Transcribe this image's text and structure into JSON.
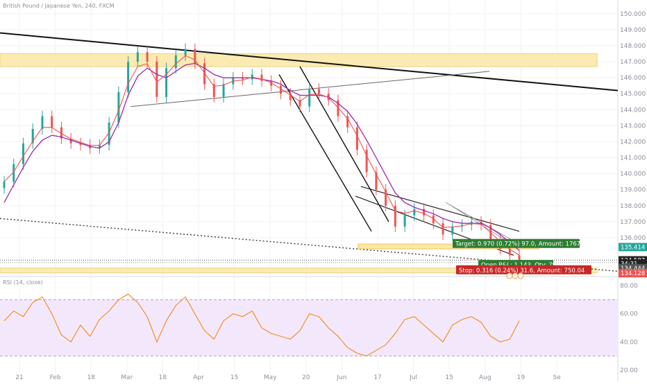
{
  "header": {
    "symbol": "British Pound / Japanese Yen, 240, FXCM",
    "rsi_title": "RSI (14, close)"
  },
  "chart_data": [
    {
      "type": "candlestick",
      "title": "British Pound / Japanese Yen, 240, FXCM",
      "x_ticks": [
        "21",
        "Feb",
        "18",
        "Mar",
        "18",
        "Apr",
        "15",
        "May",
        "20",
        "Jun",
        "17",
        "Jul",
        "15",
        "Aug",
        "19",
        "Se"
      ],
      "y_ticks": [
        "150.000",
        "149.000",
        "148.000",
        "147.000",
        "146.000",
        "145.000",
        "144.000",
        "143.000",
        "142.000",
        "141.000",
        "140.000",
        "139.000",
        "138.000",
        "137.000",
        "136.000"
      ],
      "ylim": [
        133.7,
        150.6
      ],
      "price_close": [
        139.5,
        140.6,
        141.9,
        142.8,
        143.6,
        142.9,
        142.2,
        141.9,
        141.8,
        141.6,
        141.8,
        143.2,
        145.1,
        147.0,
        147.6,
        147.0,
        144.8,
        146.6,
        147.4,
        147.8,
        146.9,
        145.6,
        144.8,
        145.6,
        146.0,
        145.9,
        146.2,
        145.8,
        145.5,
        145.0,
        144.6,
        144.2,
        145.3,
        145.0,
        144.6,
        143.6,
        142.9,
        141.5,
        140.1,
        139.0,
        138.0,
        136.7,
        137.4,
        137.8,
        137.4,
        136.9,
        136.2,
        136.7,
        136.8,
        137.0,
        136.8,
        135.9,
        135.3,
        134.9,
        134.6
      ],
      "ma_line": [
        138.2,
        139.3,
        140.4,
        141.4,
        142.1,
        142.4,
        142.3,
        142.1,
        141.9,
        141.7,
        141.6,
        142.0,
        143.2,
        144.9,
        146.1,
        146.6,
        146.2,
        146.0,
        146.4,
        146.8,
        146.9,
        146.6,
        146.2,
        146.0,
        146.0,
        146.0,
        146.0,
        145.9,
        145.8,
        145.6,
        145.2,
        144.9,
        144.9,
        144.9,
        144.8,
        144.4,
        143.9,
        143.1,
        142.1,
        141.0,
        139.9,
        138.8,
        138.2,
        137.9,
        137.7,
        137.5,
        137.2,
        137.0,
        136.9,
        136.9,
        136.9,
        136.6,
        136.2,
        135.7,
        135.2
      ],
      "zones": [
        [
          146.7,
          147.5
        ],
        [
          133.8,
          134.1
        ]
      ],
      "price_labels": {
        "current": "135.414",
        "level_1": "134.587",
        "countdown": "34:31",
        "level_2": "134.444",
        "level_3": "134.128"
      },
      "annotations": {
        "target": "Target: 0.970 (0.72%) 97.0, Amount: 1767.27",
        "open": "Open P&L: 1.143, Qty: 791",
        "stop": "Stop: 0.316 (0.24%) 31.6, Amount: 750.04"
      },
      "colors": {
        "up": "#26a69a",
        "down": "#ef5350",
        "ma": "#9c27b0",
        "ema": "#ef5350",
        "zone": "#fbe8a6"
      }
    },
    {
      "type": "line",
      "title": "RSI (14, close)",
      "y_ticks": [
        "80.00",
        "60.00",
        "40.00",
        "20.00"
      ],
      "ylim": [
        17,
        85
      ],
      "band": [
        30,
        70
      ],
      "values": [
        55,
        62,
        58,
        68,
        72,
        60,
        45,
        40,
        52,
        44,
        56,
        62,
        70,
        74,
        68,
        58,
        40,
        55,
        66,
        72,
        60,
        48,
        42,
        55,
        60,
        58,
        62,
        50,
        46,
        44,
        42,
        48,
        60,
        58,
        50,
        44,
        36,
        32,
        30,
        34,
        38,
        46,
        56,
        58,
        52,
        46,
        40,
        52,
        56,
        58,
        54,
        44,
        40,
        42,
        55
      ],
      "color": "#f57c00"
    }
  ]
}
